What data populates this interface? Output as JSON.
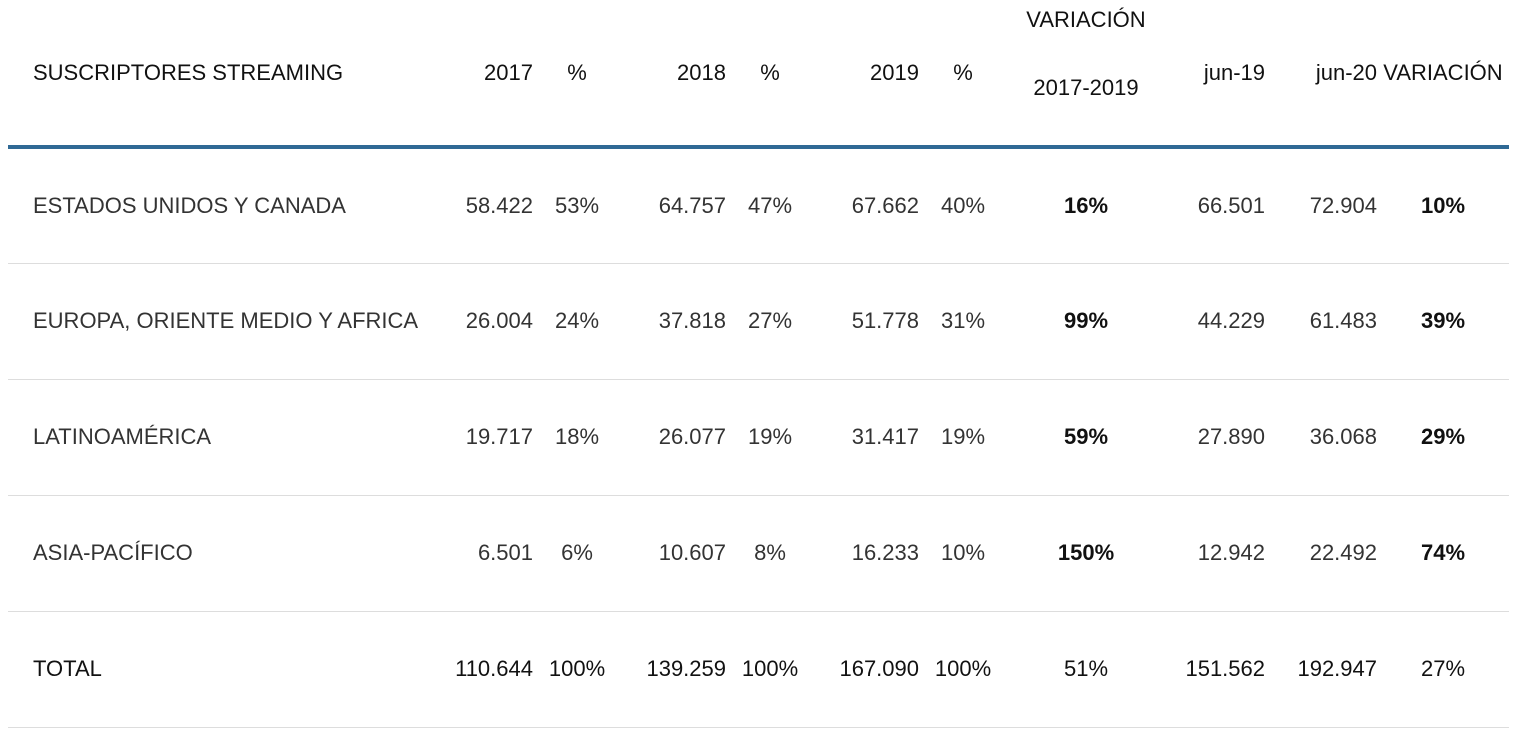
{
  "chart_data": {
    "type": "table",
    "columns": [
      "SUSCRIPTORES STREAMING",
      "2017",
      "%",
      "2018",
      "%",
      "2019",
      "%",
      "VARIACIÓN 2017-2019",
      "jun-19",
      "jun-20",
      "VARIACIÓN"
    ],
    "header": {
      "label": "SUSCRIPTORES STREAMING",
      "y2017": "2017",
      "p2017": "%",
      "y2018": "2018",
      "p2018": "%",
      "y2019": "2019",
      "p2019": "%",
      "var1_line1": "VARIACIÓN",
      "var1_line2": "2017-2019",
      "jun19": "jun-19",
      "jun20": "jun-20",
      "var2": "VARIACIÓN"
    },
    "rows": [
      {
        "label": "ESTADOS UNIDOS Y CANADA",
        "y2017": "58.422",
        "p2017": "53%",
        "y2018": "64.757",
        "p2018": "47%",
        "y2019": "67.662",
        "p2019": "40%",
        "var1": "16%",
        "jun19": "66.501",
        "jun20": "72.904",
        "var2": "10%"
      },
      {
        "label": "EUROPA, ORIENTE MEDIO Y AFRICA",
        "y2017": "26.004",
        "p2017": "24%",
        "y2018": "37.818",
        "p2018": "27%",
        "y2019": "51.778",
        "p2019": "31%",
        "var1": "99%",
        "jun19": "44.229",
        "jun20": "61.483",
        "var2": "39%"
      },
      {
        "label": "LATINOAMÉRICA",
        "y2017": "19.717",
        "p2017": "18%",
        "y2018": "26.077",
        "p2018": "19%",
        "y2019": "31.417",
        "p2019": "19%",
        "var1": "59%",
        "jun19": "27.890",
        "jun20": "36.068",
        "var2": "29%"
      },
      {
        "label": "ASIA-PACÍFICO",
        "y2017": "6.501",
        "p2017": "6%",
        "y2018": "10.607",
        "p2018": "8%",
        "y2019": "16.233",
        "p2019": "10%",
        "var1": "150%",
        "jun19": "12.942",
        "jun20": "22.492",
        "var2": "74%"
      },
      {
        "label": "TOTAL",
        "y2017": "110.644",
        "p2017": "100%",
        "y2018": "139.259",
        "p2018": "100%",
        "y2019": "167.090",
        "p2019": "100%",
        "var1": "51%",
        "jun19": "151.562",
        "jun20": "192.947",
        "var2": "27%"
      }
    ]
  },
  "colors": {
    "header_rule": "#2f6995",
    "row_rule": "#dddddd"
  }
}
